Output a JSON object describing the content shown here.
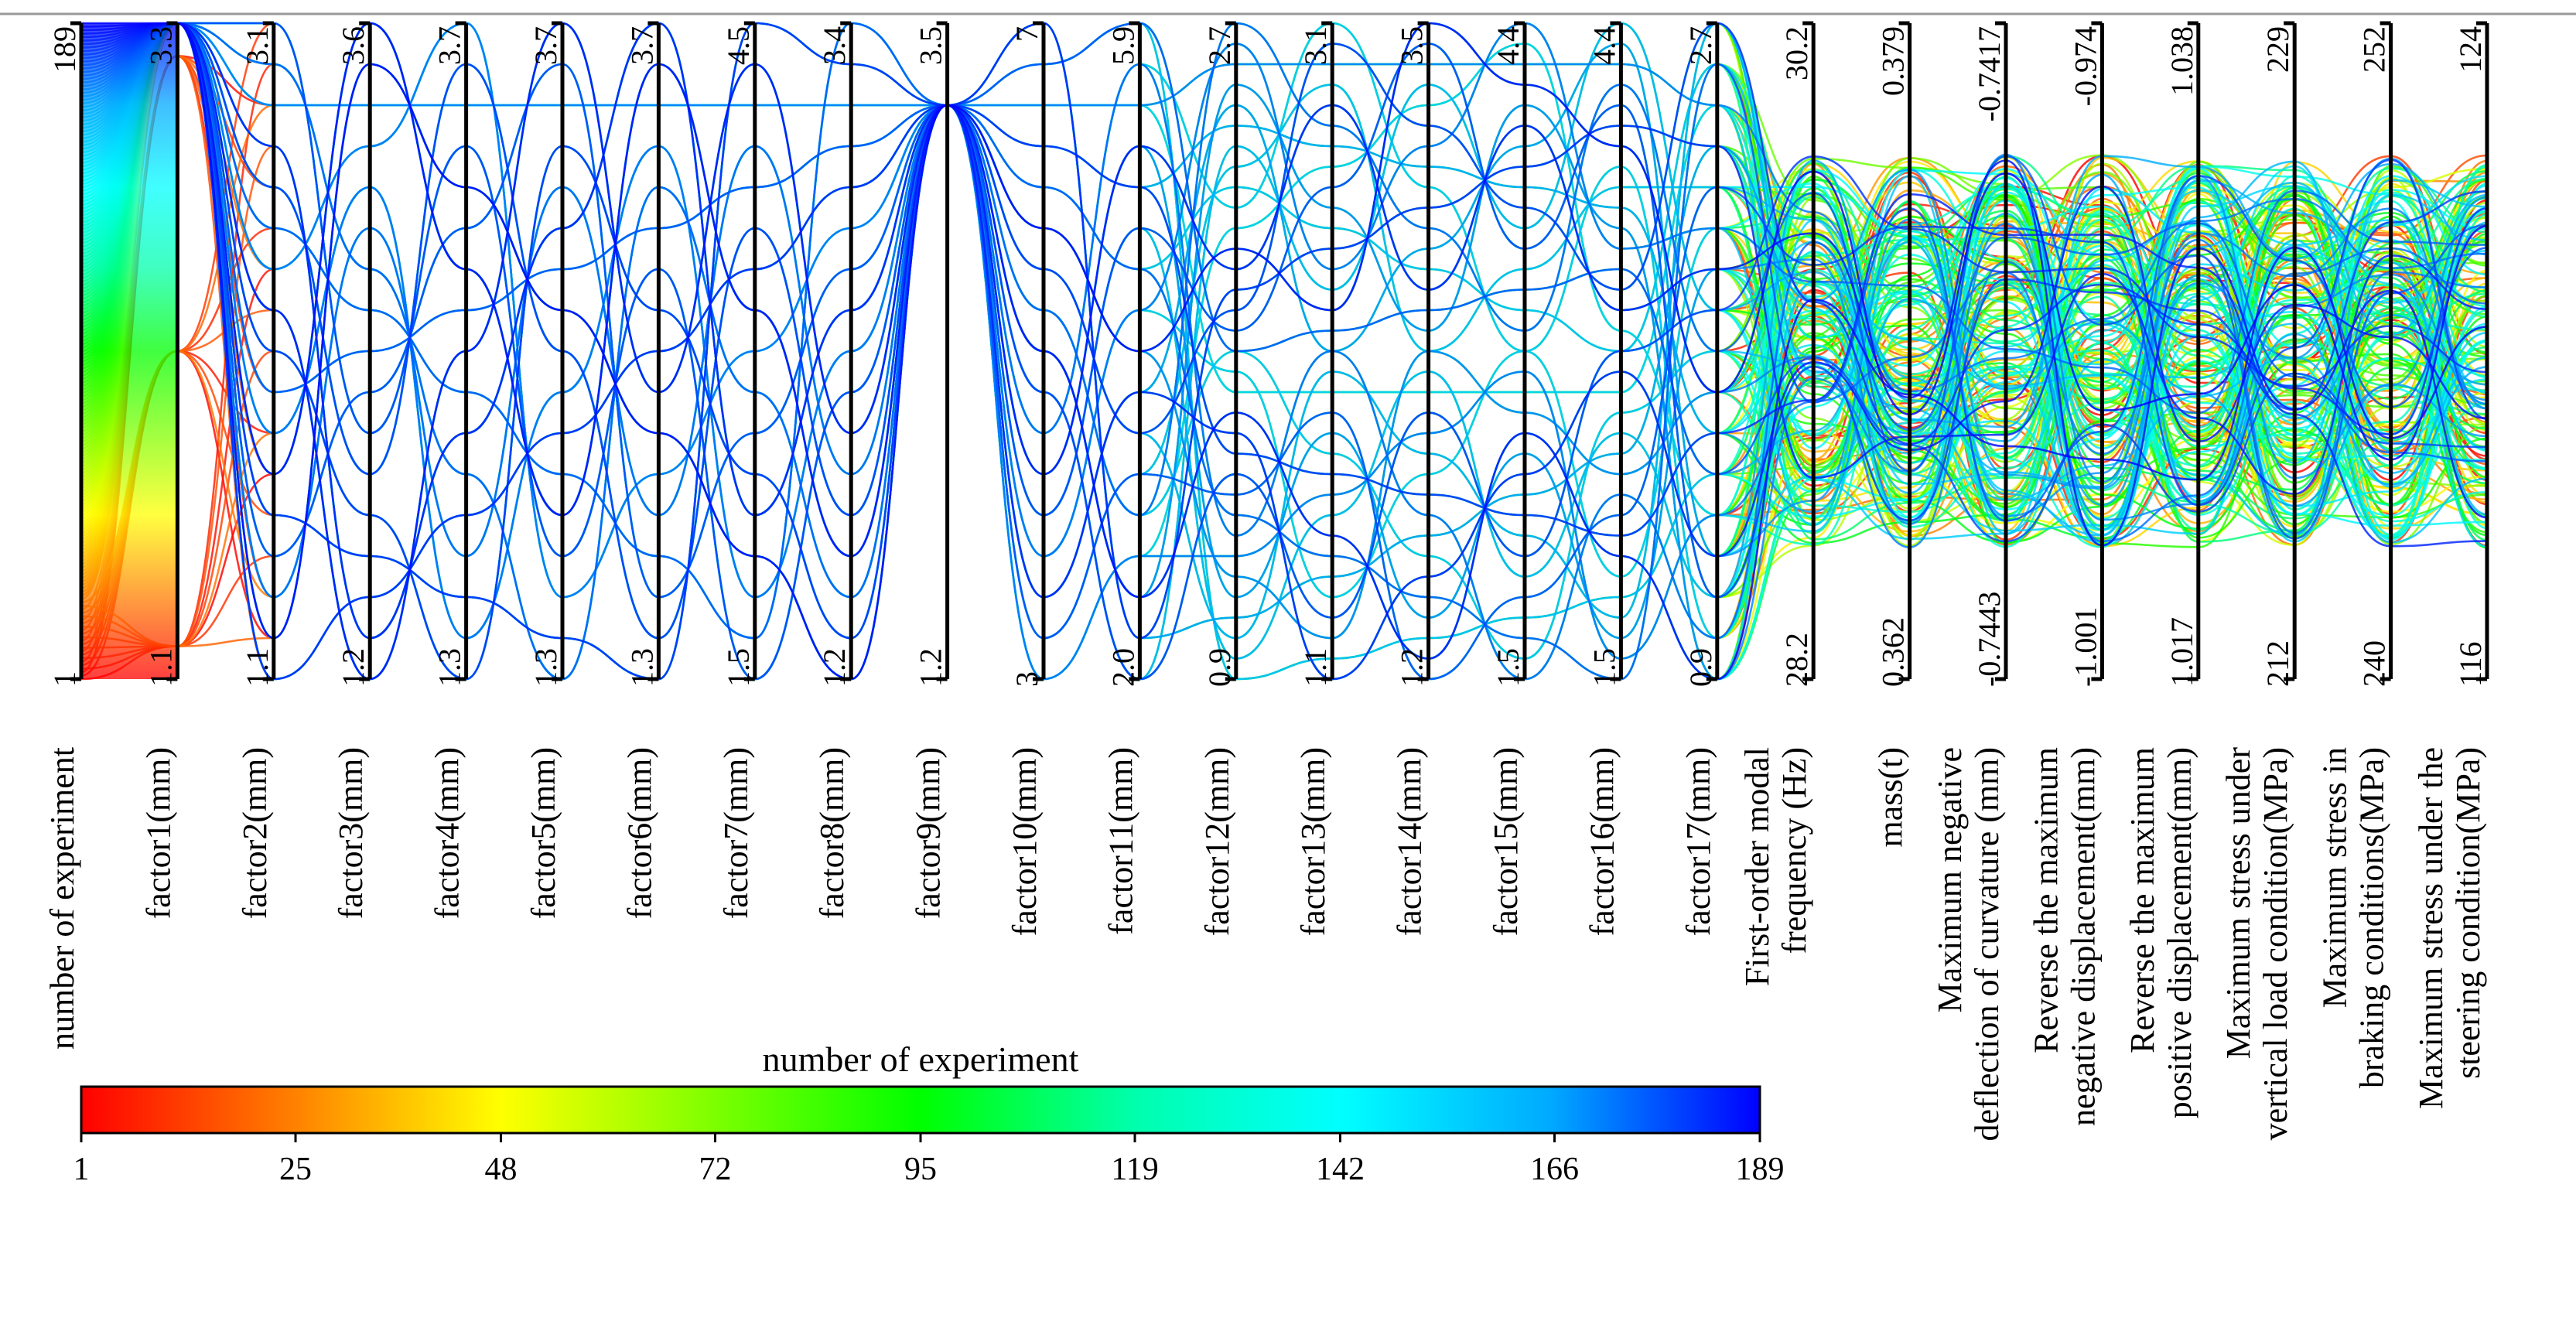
{
  "chart_data": {
    "type": "parallel-coordinates",
    "n_experiments": 189,
    "color_variable": "number of experiment",
    "axes": [
      {
        "label": "number of experiment",
        "min": "1",
        "max": "189",
        "min_num": 1,
        "max_num": 189,
        "lines": [
          "number of experiment"
        ]
      },
      {
        "label": "factor1(mm)",
        "min": "1.1",
        "max": "3.3",
        "min_num": 1.1,
        "max_num": 3.3,
        "lines": [
          "factor1(mm)"
        ]
      },
      {
        "label": "factor2(mm)",
        "min": "1.1",
        "max": "3.1",
        "min_num": 1.1,
        "max_num": 3.1,
        "lines": [
          "factor2(mm)"
        ]
      },
      {
        "label": "factor3(mm)",
        "min": "1.2",
        "max": "3.6",
        "min_num": 1.2,
        "max_num": 3.6,
        "lines": [
          "factor3(mm)"
        ]
      },
      {
        "label": "factor4(mm)",
        "min": "1.3",
        "max": "3.7",
        "min_num": 1.3,
        "max_num": 3.7,
        "lines": [
          "factor4(mm)"
        ]
      },
      {
        "label": "factor5(mm)",
        "min": "1.3",
        "max": "3.7",
        "min_num": 1.3,
        "max_num": 3.7,
        "lines": [
          "factor5(mm)"
        ]
      },
      {
        "label": "factor6(mm)",
        "min": "1.3",
        "max": "3.7",
        "min_num": 1.3,
        "max_num": 3.7,
        "lines": [
          "factor6(mm)"
        ]
      },
      {
        "label": "factor7(mm)",
        "min": "1.5",
        "max": "4.5",
        "min_num": 1.5,
        "max_num": 4.5,
        "lines": [
          "factor7(mm)"
        ]
      },
      {
        "label": "factor8(mm)",
        "min": "1.2",
        "max": "3.4",
        "min_num": 1.2,
        "max_num": 3.4,
        "lines": [
          "factor8(mm)"
        ]
      },
      {
        "label": "factor9(mm)",
        "min": "1.2",
        "max": "3.5",
        "min_num": 1.2,
        "max_num": 3.5,
        "lines": [
          "factor9(mm)"
        ]
      },
      {
        "label": "factor10(mm)",
        "min": "3",
        "max": "7",
        "min_num": 3,
        "max_num": 7,
        "lines": [
          "factor10(mm)"
        ]
      },
      {
        "label": "factor11(mm)",
        "min": "2.0",
        "max": "5.9",
        "min_num": 2.0,
        "max_num": 5.9,
        "lines": [
          "factor11(mm)"
        ]
      },
      {
        "label": "factor12(mm)",
        "min": "0.9",
        "max": "2.7",
        "min_num": 0.9,
        "max_num": 2.7,
        "lines": [
          "factor12(mm)"
        ]
      },
      {
        "label": "factor13(mm)",
        "min": "1.1",
        "max": "3.1",
        "min_num": 1.1,
        "max_num": 3.1,
        "lines": [
          "factor13(mm)"
        ]
      },
      {
        "label": "factor14(mm)",
        "min": "1.2",
        "max": "3.5",
        "min_num": 1.2,
        "max_num": 3.5,
        "lines": [
          "factor14(mm)"
        ]
      },
      {
        "label": "factor15(mm)",
        "min": "1.5",
        "max": "4.4",
        "min_num": 1.5,
        "max_num": 4.4,
        "lines": [
          "factor15(mm)"
        ]
      },
      {
        "label": "factor16(mm)",
        "min": "1.5",
        "max": "4.4",
        "min_num": 1.5,
        "max_num": 4.4,
        "lines": [
          "factor16(mm)"
        ]
      },
      {
        "label": "factor17(mm)",
        "min": "0.9",
        "max": "2.7",
        "min_num": 0.9,
        "max_num": 2.7,
        "lines": [
          "factor17(mm)"
        ]
      },
      {
        "label": "First-order modal frequency (Hz)",
        "min": "28.2",
        "max": "30.2",
        "min_num": 28.2,
        "max_num": 30.2,
        "lines": [
          "First-order modal",
          "frequency (Hz)"
        ]
      },
      {
        "label": "mass(t)",
        "min": "0.362",
        "max": "0.379",
        "min_num": 0.362,
        "max_num": 0.379,
        "lines": [
          "mass(t)"
        ]
      },
      {
        "label": "Maximum negative deflection of curvature (mm)",
        "min": "-0.7443",
        "max": "-0.7417",
        "min_num": -0.7443,
        "max_num": -0.7417,
        "lines": [
          "Maximum negative",
          "deflection of curvature (mm)"
        ]
      },
      {
        "label": "Reverse the maximum negative displacement(mm)",
        "min": "-1.001",
        "max": "-0.974",
        "min_num": -1.001,
        "max_num": -0.974,
        "lines": [
          "Reverse the maximum",
          "negative displacement(mm)"
        ]
      },
      {
        "label": "Reverse the maximum positive displacement(mm)",
        "min": "1.017",
        "max": "1.038",
        "min_num": 1.017,
        "max_num": 1.038,
        "lines": [
          "Reverse the maximum",
          "positive displacement(mm)"
        ]
      },
      {
        "label": "Maximum stress under vertical load condition(MPa)",
        "min": "212",
        "max": "229",
        "min_num": 212,
        "max_num": 229,
        "lines": [
          "Maximum stress under",
          "vertical load condition(MPa)"
        ]
      },
      {
        "label": "Maximum stress in braking conditions(MPa)",
        "min": "240",
        "max": "252",
        "min_num": 240,
        "max_num": 252,
        "lines": [
          "Maximum stress in",
          "braking conditions(MPa)"
        ]
      },
      {
        "label": "Maximum stress under the steering condition(MPa)",
        "min": "116",
        "max": "124",
        "min_num": 116,
        "max_num": 124,
        "lines": [
          "Maximum stress under the",
          "steering condition(MPa)"
        ]
      }
    ],
    "colorbar": {
      "title": "number of experiment",
      "ticks": [
        "1",
        "25",
        "48",
        "72",
        "95",
        "119",
        "142",
        "166",
        "189"
      ],
      "tick_values": [
        1,
        25,
        48,
        72,
        95,
        119,
        142,
        166,
        189
      ],
      "min": 1,
      "max": 189,
      "colormap": "jet",
      "gradient_colors": [
        "#ff0000",
        "#ff7f00",
        "#ffff00",
        "#7fff00",
        "#00ff00",
        "#00ffaa",
        "#00ffff",
        "#00aaff",
        "#0000ff"
      ]
    }
  }
}
